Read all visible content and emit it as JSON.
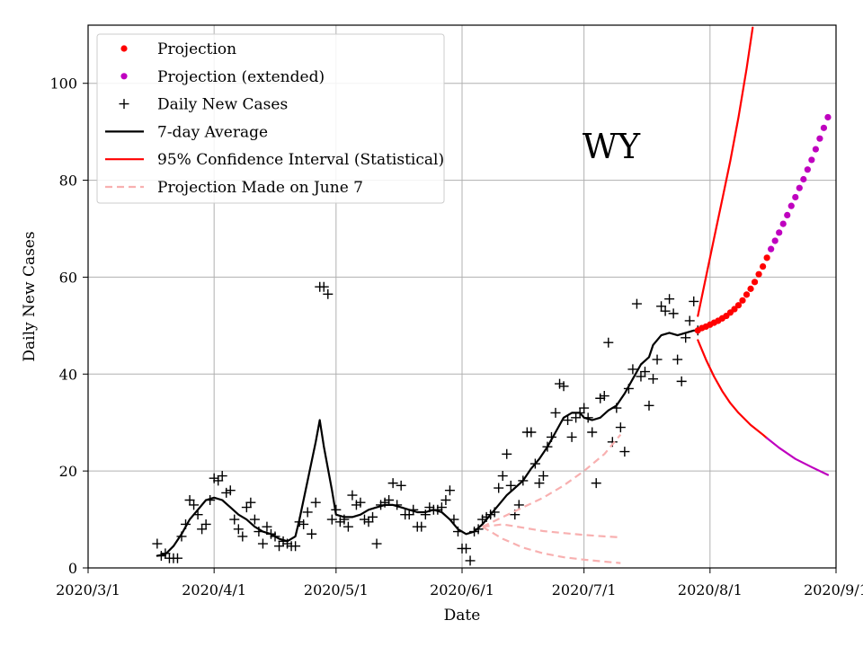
{
  "chart_data": {
    "type": "line",
    "state_label": "WY",
    "xlabel": "Date",
    "ylabel": "Daily New Cases",
    "x_units": "days since 2020/3/1",
    "xlim": [
      0,
      184
    ],
    "ylim": [
      0,
      112
    ],
    "x_ticks": [
      {
        "day": 0,
        "label": "2020/3/1"
      },
      {
        "day": 31,
        "label": "2020/4/1"
      },
      {
        "day": 61,
        "label": "2020/5/1"
      },
      {
        "day": 92,
        "label": "2020/6/1"
      },
      {
        "day": 122,
        "label": "2020/7/1"
      },
      {
        "day": 153,
        "label": "2020/8/1"
      },
      {
        "day": 184,
        "label": "2020/9/1"
      }
    ],
    "y_ticks": [
      0,
      20,
      40,
      60,
      80,
      100
    ],
    "grid": true,
    "legend_position": "top-left",
    "legend": [
      {
        "label": "Projection",
        "style": "dot",
        "color": "#ff0000"
      },
      {
        "label": "Projection (extended)",
        "style": "dot",
        "color": "#bf00bf"
      },
      {
        "label": "Daily New Cases",
        "style": "plus",
        "color": "#000000"
      },
      {
        "label": "7-day Average",
        "style": "line",
        "color": "#000000"
      },
      {
        "label": "95% Confidence Interval (Statistical)",
        "style": "line",
        "color": "#ff0000"
      },
      {
        "label": "Projection Made on June 7",
        "style": "dash",
        "color": "#f8b0b0"
      }
    ],
    "series": [
      {
        "name": "Daily New Cases",
        "type": "scatter-plus",
        "color": "#000000",
        "points": [
          [
            17,
            5
          ],
          [
            18,
            2.5
          ],
          [
            19,
            3
          ],
          [
            20,
            2
          ],
          [
            21,
            2
          ],
          [
            22,
            2
          ],
          [
            23,
            6.5
          ],
          [
            24,
            9
          ],
          [
            25,
            14
          ],
          [
            26,
            13
          ],
          [
            27,
            11
          ],
          [
            28,
            8
          ],
          [
            29,
            9
          ],
          [
            30,
            14
          ],
          [
            31,
            18.5
          ],
          [
            32,
            18
          ],
          [
            33,
            19
          ],
          [
            34,
            15.5
          ],
          [
            35,
            16
          ],
          [
            36,
            10
          ],
          [
            37,
            8
          ],
          [
            38,
            6.5
          ],
          [
            39,
            12.5
          ],
          [
            40,
            13.5
          ],
          [
            41,
            10
          ],
          [
            42,
            7.5
          ],
          [
            43,
            5
          ],
          [
            44,
            8.5
          ],
          [
            45,
            7
          ],
          [
            46,
            6.5
          ],
          [
            47,
            4.5
          ],
          [
            48,
            5.5
          ],
          [
            49,
            5
          ],
          [
            50,
            4.5
          ],
          [
            51,
            4.5
          ],
          [
            52,
            9.5
          ],
          [
            53,
            9
          ],
          [
            54,
            11.5
          ],
          [
            55,
            7
          ],
          [
            56,
            13.5
          ],
          [
            57,
            58
          ],
          [
            58,
            58
          ],
          [
            59,
            56.5
          ],
          [
            60,
            10
          ],
          [
            61,
            12
          ],
          [
            62,
            9.5
          ],
          [
            63,
            10
          ],
          [
            64,
            8.5
          ],
          [
            65,
            15
          ],
          [
            66,
            13
          ],
          [
            67,
            13.5
          ],
          [
            68,
            10
          ],
          [
            69,
            9.5
          ],
          [
            70,
            10.5
          ],
          [
            71,
            5
          ],
          [
            72,
            13
          ],
          [
            73,
            13.5
          ],
          [
            74,
            14
          ],
          [
            75,
            17.5
          ],
          [
            76,
            13
          ],
          [
            77,
            17
          ],
          [
            78,
            11
          ],
          [
            79,
            11
          ],
          [
            80,
            12
          ],
          [
            81,
            8.5
          ],
          [
            82,
            8.5
          ],
          [
            83,
            11
          ],
          [
            84,
            12.5
          ],
          [
            85,
            12
          ],
          [
            86,
            12
          ],
          [
            87,
            12.5
          ],
          [
            88,
            14
          ],
          [
            89,
            16
          ],
          [
            90,
            10
          ],
          [
            91,
            7.5
          ],
          [
            92,
            4
          ],
          [
            93,
            4
          ],
          [
            94,
            1.5
          ],
          [
            95,
            7.5
          ],
          [
            96,
            8
          ],
          [
            97,
            10
          ],
          [
            98,
            10.5
          ],
          [
            99,
            11
          ],
          [
            100,
            11.5
          ],
          [
            101,
            16.5
          ],
          [
            102,
            19
          ],
          [
            103,
            23.5
          ],
          [
            104,
            17
          ],
          [
            105,
            11
          ],
          [
            106,
            13
          ],
          [
            107,
            18
          ],
          [
            108,
            28
          ],
          [
            109,
            28
          ],
          [
            110,
            21.5
          ],
          [
            111,
            17.5
          ],
          [
            112,
            19
          ],
          [
            113,
            25
          ],
          [
            114,
            27
          ],
          [
            115,
            32
          ],
          [
            116,
            38
          ],
          [
            117,
            37.5
          ],
          [
            118,
            30.5
          ],
          [
            119,
            27
          ],
          [
            120,
            31
          ],
          [
            121,
            32
          ],
          [
            122,
            33
          ],
          [
            123,
            31
          ],
          [
            124,
            28
          ],
          [
            125,
            17.5
          ],
          [
            126,
            35
          ],
          [
            127,
            35.5
          ],
          [
            128,
            46.5
          ],
          [
            129,
            26
          ],
          [
            130,
            33
          ],
          [
            131,
            29
          ],
          [
            132,
            24
          ],
          [
            133,
            37
          ],
          [
            134,
            41
          ],
          [
            135,
            54.5
          ],
          [
            136,
            39.5
          ],
          [
            137,
            40.5
          ],
          [
            138,
            33.5
          ],
          [
            139,
            39
          ],
          [
            140,
            43
          ],
          [
            141,
            54
          ],
          [
            142,
            53
          ],
          [
            143,
            55.5
          ],
          [
            144,
            52.5
          ],
          [
            145,
            43
          ],
          [
            146,
            38.5
          ],
          [
            147,
            47.5
          ],
          [
            148,
            51
          ],
          [
            149,
            55
          ],
          [
            150,
            49
          ]
        ]
      },
      {
        "name": "7-day Average",
        "type": "line",
        "color": "#000000",
        "points": [
          [
            17,
            2.5
          ],
          [
            19,
            2.8
          ],
          [
            21,
            4.5
          ],
          [
            23,
            7
          ],
          [
            25,
            10
          ],
          [
            27,
            12
          ],
          [
            29,
            14
          ],
          [
            31,
            14.5
          ],
          [
            33,
            14
          ],
          [
            35,
            12.5
          ],
          [
            37,
            11
          ],
          [
            39,
            10
          ],
          [
            41,
            8.5
          ],
          [
            43,
            7.5
          ],
          [
            45,
            7
          ],
          [
            47,
            6
          ],
          [
            49,
            5.5
          ],
          [
            51,
            6.5
          ],
          [
            52,
            10
          ],
          [
            54,
            18
          ],
          [
            56,
            26
          ],
          [
            57,
            30.5
          ],
          [
            58,
            25
          ],
          [
            60,
            16
          ],
          [
            61,
            11
          ],
          [
            63,
            10.5
          ],
          [
            65,
            10.5
          ],
          [
            67,
            11
          ],
          [
            69,
            12
          ],
          [
            71,
            12.5
          ],
          [
            73,
            13
          ],
          [
            75,
            13
          ],
          [
            77,
            12.5
          ],
          [
            79,
            12
          ],
          [
            81,
            11.5
          ],
          [
            83,
            11.5
          ],
          [
            85,
            12
          ],
          [
            87,
            11.5
          ],
          [
            89,
            10
          ],
          [
            91,
            8
          ],
          [
            93,
            7
          ],
          [
            95,
            7.5
          ],
          [
            97,
            9
          ],
          [
            99,
            11
          ],
          [
            101,
            13
          ],
          [
            103,
            15
          ],
          [
            105,
            16.5
          ],
          [
            107,
            18
          ],
          [
            109,
            20.5
          ],
          [
            111,
            22.5
          ],
          [
            113,
            25
          ],
          [
            115,
            28
          ],
          [
            117,
            31
          ],
          [
            119,
            32
          ],
          [
            121,
            32
          ],
          [
            122,
            31
          ],
          [
            124,
            30.5
          ],
          [
            126,
            31
          ],
          [
            128,
            32.5
          ],
          [
            130,
            33.5
          ],
          [
            132,
            36
          ],
          [
            134,
            39
          ],
          [
            136,
            42
          ],
          [
            138,
            43.5
          ],
          [
            139,
            46
          ],
          [
            141,
            48
          ],
          [
            143,
            48.5
          ],
          [
            145,
            48
          ],
          [
            147,
            48.5
          ],
          [
            149,
            49
          ],
          [
            150,
            49
          ]
        ]
      },
      {
        "name": "Projection",
        "type": "scatter-dot",
        "color": "#ff0000",
        "points": [
          [
            150,
            49
          ],
          [
            151,
            49.5
          ],
          [
            152,
            49.8
          ],
          [
            153,
            50.2
          ],
          [
            154,
            50.6
          ],
          [
            155,
            51
          ],
          [
            156,
            51.5
          ],
          [
            157,
            52
          ],
          [
            158,
            52.7
          ],
          [
            159,
            53.4
          ],
          [
            160,
            54.2
          ],
          [
            161,
            55.2
          ],
          [
            162,
            56.4
          ],
          [
            163,
            57.6
          ],
          [
            164,
            59
          ],
          [
            165,
            60.6
          ],
          [
            166,
            62.2
          ],
          [
            167,
            64
          ]
        ]
      },
      {
        "name": "Projection (extended)",
        "type": "scatter-dot",
        "color": "#bf00bf",
        "points": [
          [
            168,
            65.8
          ],
          [
            169,
            67.5
          ],
          [
            170,
            69.2
          ],
          [
            171,
            71
          ],
          [
            172,
            72.8
          ],
          [
            173,
            74.7
          ],
          [
            174,
            76.5
          ],
          [
            175,
            78.4
          ],
          [
            176,
            80.2
          ],
          [
            177,
            82.2
          ],
          [
            178,
            84.2
          ],
          [
            179,
            86.4
          ],
          [
            180,
            88.6
          ],
          [
            181,
            90.8
          ],
          [
            182,
            93
          ]
        ]
      },
      {
        "name": "95% Confidence Interval (Statistical) upper",
        "type": "line",
        "color": "#ff0000",
        "points": [
          [
            150,
            52
          ],
          [
            152,
            60
          ],
          [
            154,
            68
          ],
          [
            156,
            76
          ],
          [
            158,
            84
          ],
          [
            160,
            93
          ],
          [
            162,
            103
          ],
          [
            163.5,
            111.5
          ]
        ]
      },
      {
        "name": "95% Confidence Interval (Statistical) lower",
        "type": "line",
        "color": "#ff0000",
        "points": [
          [
            150,
            47
          ],
          [
            152,
            43
          ],
          [
            154,
            39.5
          ],
          [
            156,
            36.5
          ],
          [
            158,
            34
          ],
          [
            160,
            32
          ],
          [
            163,
            29.5
          ],
          [
            166,
            27.5
          ],
          [
            167,
            26.8
          ]
        ]
      },
      {
        "name": "95% Confidence Interval lower (extended)",
        "type": "line",
        "color": "#bf00bf",
        "points": [
          [
            167,
            26.8
          ],
          [
            170,
            24.8
          ],
          [
            174,
            22.5
          ],
          [
            178,
            20.8
          ],
          [
            182,
            19.2
          ]
        ]
      },
      {
        "name": "Projection Made on June 7 (central)",
        "type": "dashed-line",
        "color": "#f8b0b0",
        "points": [
          [
            97,
            8.5
          ],
          [
            102,
            9
          ],
          [
            107,
            8.3
          ],
          [
            112,
            7.6
          ],
          [
            117,
            7.2
          ],
          [
            122,
            6.8
          ],
          [
            127,
            6.5
          ],
          [
            131,
            6.3
          ]
        ]
      },
      {
        "name": "Projection Made on June 7 (upper)",
        "type": "dashed-line",
        "color": "#f8b0b0",
        "points": [
          [
            97,
            8.5
          ],
          [
            102,
            10.5
          ],
          [
            107,
            12.5
          ],
          [
            112,
            14.5
          ],
          [
            117,
            17
          ],
          [
            122,
            20
          ],
          [
            127,
            23.5
          ],
          [
            131,
            27.5
          ]
        ]
      },
      {
        "name": "Projection Made on June 7 (lower)",
        "type": "dashed-line",
        "color": "#f8b0b0",
        "points": [
          [
            97,
            8.5
          ],
          [
            102,
            6
          ],
          [
            107,
            4.2
          ],
          [
            112,
            3
          ],
          [
            117,
            2.2
          ],
          [
            122,
            1.7
          ],
          [
            127,
            1.3
          ],
          [
            131,
            1
          ]
        ]
      }
    ]
  }
}
